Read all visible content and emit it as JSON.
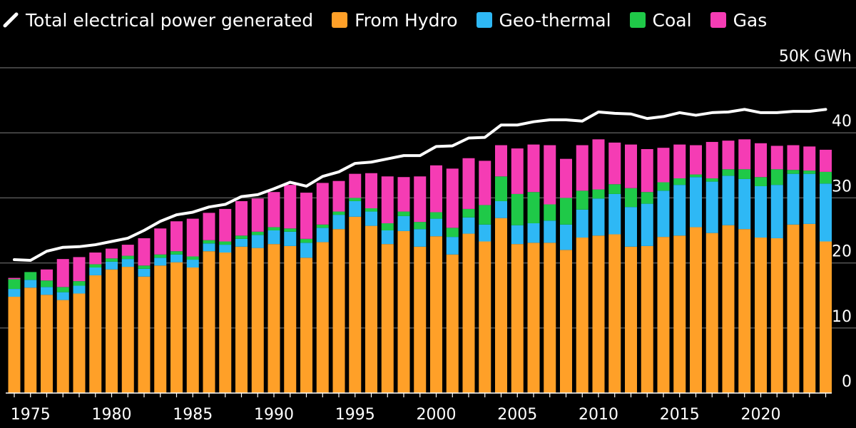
{
  "legend": {
    "total_label": "Total electrical power generated",
    "hydro_label": "From Hydro",
    "geo_label": "Geo-thermal",
    "coal_label": "Coal",
    "gas_label": "Gas"
  },
  "chart_data": {
    "type": "bar",
    "stacked": true,
    "unit_label": "50K GWh",
    "x_tick_labels": [
      "1975",
      "1980",
      "1985",
      "1990",
      "1995",
      "2000",
      "2005",
      "2010",
      "2015",
      "2020"
    ],
    "y_tick_labels": [
      "0",
      "10",
      "20",
      "30",
      "40",
      "50K GWh"
    ],
    "ylim": [
      0,
      50
    ],
    "grid": true,
    "legend_position": "top-left",
    "colors": {
      "hydro": "#ffa028",
      "geothermal": "#2eb8f5",
      "coal": "#1fc948",
      "gas": "#f53cb4",
      "total": "#ffffff",
      "grid": "#555555",
      "background": "#000000"
    },
    "years": [
      1974,
      1975,
      1976,
      1977,
      1978,
      1979,
      1980,
      1981,
      1982,
      1983,
      1984,
      1985,
      1986,
      1987,
      1988,
      1989,
      1990,
      1991,
      1992,
      1993,
      1994,
      1995,
      1996,
      1997,
      1998,
      1999,
      2000,
      2001,
      2002,
      2003,
      2004,
      2005,
      2006,
      2007,
      2008,
      2009,
      2010,
      2011,
      2012,
      2013,
      2014,
      2015,
      2016,
      2017,
      2018,
      2019,
      2020,
      2021,
      2022,
      2023,
      2024
    ],
    "series": [
      {
        "name": "From Hydro",
        "key": "hydro",
        "values": [
          14.8,
          16.2,
          15.1,
          14.3,
          15.3,
          18.1,
          19.0,
          19.4,
          17.9,
          19.6,
          20.1,
          19.3,
          21.8,
          21.6,
          22.5,
          22.3,
          22.9,
          22.6,
          20.8,
          23.2,
          25.2,
          27.1,
          25.7,
          22.9,
          24.9,
          22.5,
          24.1,
          21.3,
          24.5,
          23.3,
          26.9,
          22.9,
          23.1,
          23.1,
          22.0,
          23.9,
          24.2,
          24.4,
          22.5,
          22.6,
          24.0,
          24.2,
          25.5,
          24.6,
          25.8,
          25.2,
          23.9,
          23.8,
          25.9,
          26.0,
          23.3
        ]
      },
      {
        "name": "Geo-thermal",
        "key": "geothermal",
        "values": [
          1.2,
          1.2,
          1.2,
          1.2,
          1.2,
          1.2,
          1.2,
          1.2,
          1.2,
          1.2,
          1.2,
          1.2,
          1.2,
          1.2,
          1.2,
          2.0,
          2.1,
          2.2,
          2.3,
          2.2,
          2.2,
          2.4,
          2.2,
          2.1,
          2.3,
          2.7,
          2.7,
          2.7,
          2.5,
          2.6,
          2.6,
          2.9,
          3.0,
          3.4,
          3.9,
          4.3,
          5.7,
          6.2,
          6.1,
          6.5,
          7.1,
          7.8,
          7.7,
          7.9,
          7.6,
          7.7,
          7.9,
          8.2,
          7.8,
          7.7,
          8.9
        ]
      },
      {
        "name": "Coal",
        "key": "coal",
        "values": [
          1.5,
          1.2,
          1.0,
          0.8,
          0.7,
          0.5,
          0.5,
          0.5,
          0.5,
          0.5,
          0.5,
          0.5,
          0.5,
          0.5,
          0.5,
          0.5,
          0.5,
          0.5,
          0.6,
          0.5,
          0.5,
          0.5,
          0.5,
          1.1,
          0.7,
          1.1,
          1.0,
          1.4,
          1.3,
          3.0,
          3.8,
          4.8,
          4.8,
          2.5,
          4.1,
          2.9,
          1.4,
          1.5,
          2.9,
          1.8,
          1.3,
          1.0,
          0.4,
          0.5,
          1.0,
          1.5,
          1.4,
          2.4,
          0.6,
          0.5,
          1.8
        ]
      },
      {
        "name": "Gas",
        "key": "gas",
        "values": [
          0.2,
          0.0,
          1.7,
          4.3,
          3.7,
          1.8,
          1.5,
          1.7,
          4.2,
          4.0,
          4.6,
          5.8,
          4.2,
          5.0,
          5.3,
          5.1,
          5.4,
          6.7,
          7.1,
          6.4,
          4.7,
          3.7,
          5.4,
          7.2,
          5.3,
          7.0,
          7.2,
          9.1,
          7.8,
          6.8,
          4.8,
          7.0,
          7.3,
          9.1,
          6.0,
          7.0,
          7.7,
          6.4,
          6.7,
          6.6,
          5.3,
          5.2,
          4.5,
          5.6,
          4.4,
          4.6,
          5.2,
          3.6,
          3.8,
          3.7,
          3.4
        ]
      },
      {
        "name": "Total electrical power generated",
        "key": "total",
        "type": "line",
        "values": [
          20.5,
          20.4,
          21.8,
          22.4,
          22.5,
          22.8,
          23.3,
          23.8,
          25.0,
          26.4,
          27.4,
          27.8,
          28.6,
          29.0,
          30.2,
          30.5,
          31.4,
          32.4,
          31.8,
          33.3,
          34.0,
          35.3,
          35.5,
          36.0,
          36.5,
          36.5,
          37.9,
          38.0,
          39.2,
          39.3,
          41.2,
          41.2,
          41.7,
          42.0,
          42.0,
          41.8,
          43.2,
          43.0,
          42.9,
          42.2,
          42.5,
          43.1,
          42.7,
          43.1,
          43.2,
          43.6,
          43.1,
          43.1,
          43.3,
          43.3,
          43.6
        ]
      }
    ]
  }
}
